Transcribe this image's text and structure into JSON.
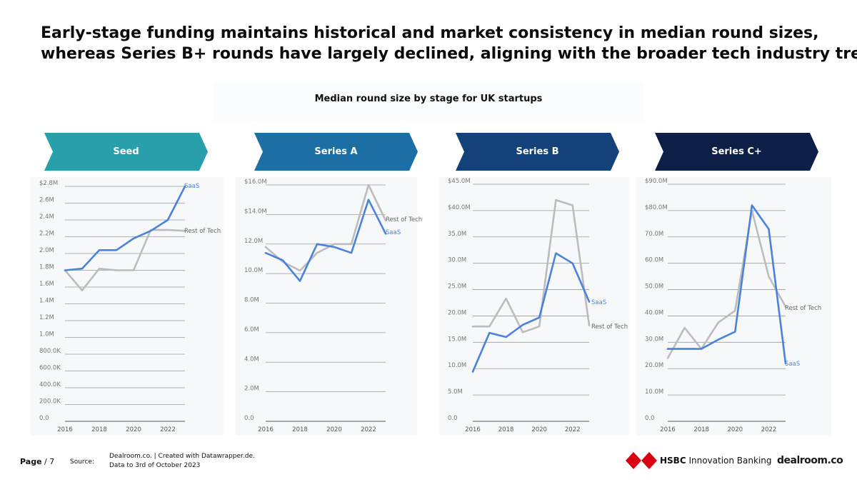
{
  "headline": {
    "line1": "Early-stage funding maintains historical and market consistency in median round sizes,",
    "line2": "whereas Series B+ rounds have largely declined, aligning with the broader tech industry trend."
  },
  "subtitle": "Median round size by stage for UK startups",
  "footer": {
    "page_label": "Page",
    "page_number": "/ 7",
    "source_label": "Source:",
    "source_line1": "Dealroom.co. | Created with Datawrapper.de.",
    "source_line2": "Data to 3rd of October 2023",
    "hsbc_brand": "HSBC",
    "hsbc_rest": " Innovation Banking",
    "dealroom_logo": "dealroom.co"
  },
  "colors": {
    "saas": "#4a82dc",
    "rest_of_tech": "#bcbcbc",
    "banner_seed": "#2a9fac",
    "banner_series_a": "#1c6fa4",
    "banner_series_b": "#13427a",
    "banner_series_c": "#0d1f46"
  },
  "chart_data": [
    {
      "type": "line",
      "stage": "Seed",
      "x": [
        2016,
        2017,
        2018,
        2019,
        2020,
        2021,
        2022,
        2023
      ],
      "ylim": [
        0,
        2800000
      ],
      "y_ticks": [
        0,
        200000,
        400000,
        600000,
        800000,
        1000000,
        1200000,
        1400000,
        1600000,
        1800000,
        2000000,
        2200000,
        2400000,
        2600000,
        2800000
      ],
      "y_tick_labels": [
        "0.0",
        "200.0K",
        "400.0K",
        "600.0K",
        "800.0K",
        "1.0M",
        "1.2M",
        "1.4M",
        "1.6M",
        "1.8M",
        "2.0M",
        "2.2M",
        "2.4M",
        "2.6M",
        "$2.8M"
      ],
      "x_tick_labels": [
        "2016",
        "2018",
        "2020",
        "2022"
      ],
      "series": [
        {
          "name": "SaaS",
          "values": [
            1800000,
            1820000,
            2040000,
            2040000,
            2180000,
            2270000,
            2400000,
            2800000
          ]
        },
        {
          "name": "Rest of Tech",
          "values": [
            1800000,
            1560000,
            1820000,
            1800000,
            1800000,
            2280000,
            2280000,
            2270000
          ]
        }
      ]
    },
    {
      "type": "line",
      "stage": "Series A",
      "x": [
        2016,
        2017,
        2018,
        2019,
        2020,
        2021,
        2022,
        2023
      ],
      "ylim": [
        0,
        16000000
      ],
      "y_ticks": [
        0,
        2000000,
        4000000,
        6000000,
        8000000,
        10000000,
        12000000,
        14000000,
        16000000
      ],
      "y_tick_labels": [
        "0.0",
        "2.0M",
        "4.0M",
        "6.0M",
        "8.0M",
        "10.0M",
        "12.0M",
        "$14.0M",
        "$16.0M"
      ],
      "x_tick_labels": [
        "2016",
        "2018",
        "2020",
        "2022"
      ],
      "series": [
        {
          "name": "SaaS",
          "values": [
            11400000,
            10900000,
            9500000,
            12000000,
            11800000,
            11400000,
            15000000,
            12700000
          ]
        },
        {
          "name": "Rest of Tech",
          "values": [
            11800000,
            10800000,
            10200000,
            11400000,
            12000000,
            12000000,
            16000000,
            13600000
          ]
        }
      ]
    },
    {
      "type": "line",
      "stage": "Series B",
      "x": [
        2016,
        2017,
        2018,
        2019,
        2020,
        2021,
        2022,
        2023
      ],
      "ylim": [
        0,
        45000000
      ],
      "y_ticks": [
        0,
        5000000,
        10000000,
        15000000,
        20000000,
        25000000,
        30000000,
        35000000,
        40000000,
        45000000
      ],
      "y_tick_labels": [
        "0.0",
        "5.0M",
        "10.0M",
        "15.0M",
        "20.0M",
        "25.0M",
        "30.0M",
        "35.0M",
        "$40.0M",
        "$45.0M"
      ],
      "x_tick_labels": [
        "2016",
        "2018",
        "2020",
        "2022"
      ],
      "series": [
        {
          "name": "SaaS",
          "values": [
            9400000,
            16800000,
            16000000,
            18300000,
            19700000,
            31900000,
            30000000,
            22700000
          ]
        },
        {
          "name": "Rest of Tech",
          "values": [
            18000000,
            18000000,
            23300000,
            16900000,
            18000000,
            42000000,
            41000000,
            18200000
          ]
        }
      ]
    },
    {
      "type": "line",
      "stage": "Series C+",
      "x": [
        2016,
        2017,
        2018,
        2019,
        2020,
        2021,
        2022,
        2023
      ],
      "ylim": [
        0,
        90000000
      ],
      "y_ticks": [
        0,
        10000000,
        20000000,
        30000000,
        40000000,
        50000000,
        60000000,
        70000000,
        80000000,
        90000000
      ],
      "y_tick_labels": [
        "0.0",
        "10.0M",
        "20.0M",
        "30.0M",
        "40.0M",
        "50.0M",
        "60.0M",
        "70.0M",
        "$80.0M",
        "$90.0M"
      ],
      "x_tick_labels": [
        "2016",
        "2018",
        "2020",
        "2022"
      ],
      "series": [
        {
          "name": "SaaS",
          "values": [
            27500000,
            27500000,
            27500000,
            31000000,
            34000000,
            82000000,
            73000000,
            22000000
          ]
        },
        {
          "name": "Rest of Tech",
          "values": [
            24000000,
            35500000,
            27500000,
            37500000,
            42000000,
            80000000,
            55000000,
            43500000
          ]
        }
      ]
    }
  ]
}
